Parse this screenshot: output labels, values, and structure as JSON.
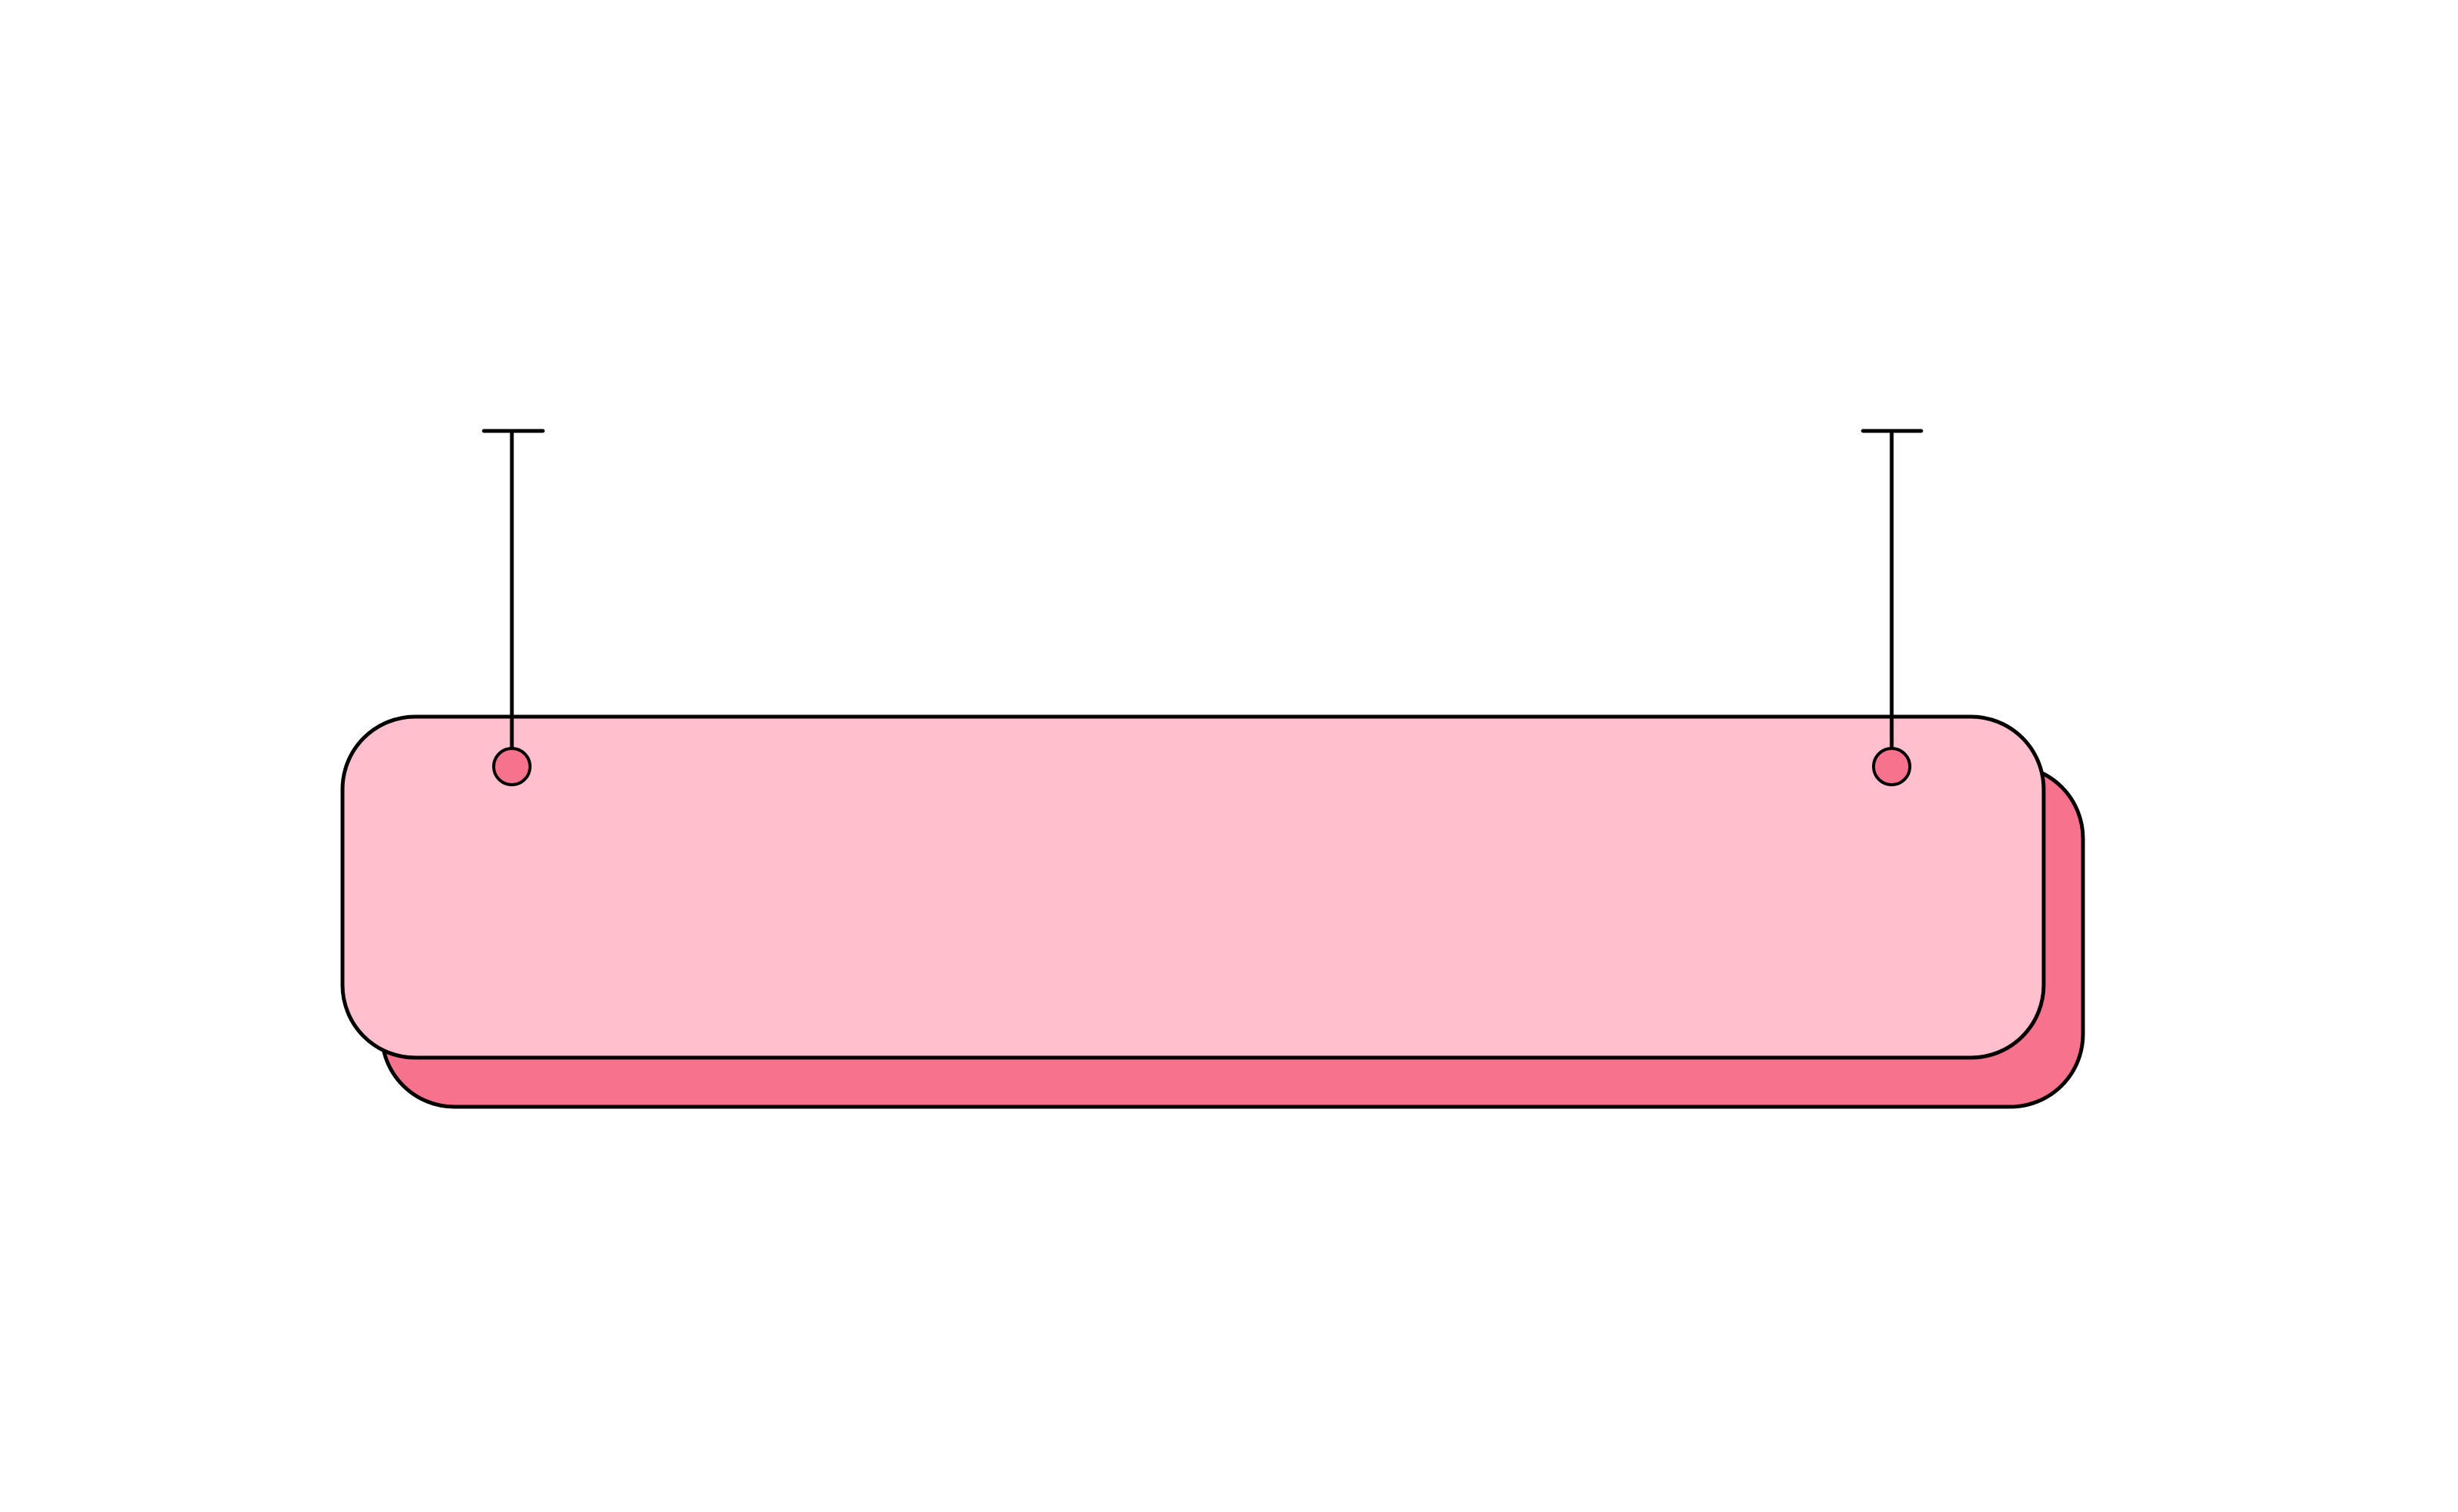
{
  "banner": {
    "text": "",
    "front_color": "#FFBFCC",
    "back_color": "#F7728C",
    "outline_color": "#000000",
    "hole_color": "#F7728C"
  },
  "background_color": "#FFFFFF"
}
